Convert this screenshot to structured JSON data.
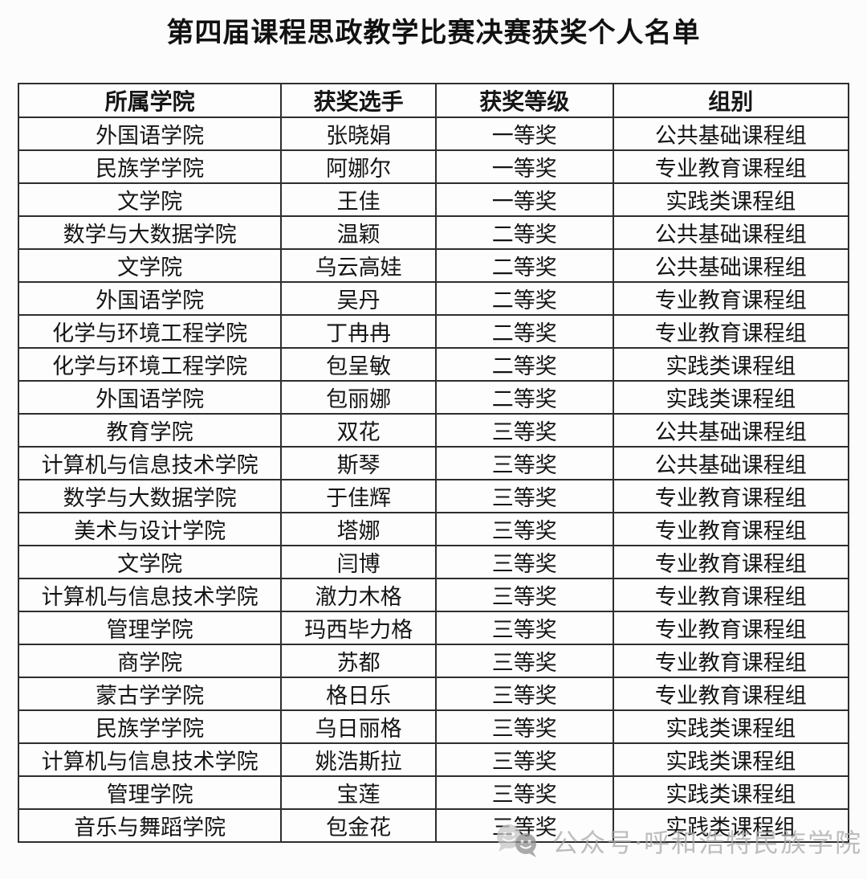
{
  "title": "第四届课程思政教学比赛决赛获奖个人名单",
  "table": {
    "headers": [
      "所属学院",
      "获奖选手",
      "获奖等级",
      "组别"
    ],
    "rows": [
      [
        "外国语学院",
        "张晓娟",
        "一等奖",
        "公共基础课程组"
      ],
      [
        "民族学学院",
        "阿娜尔",
        "一等奖",
        "专业教育课程组"
      ],
      [
        "文学院",
        "王佳",
        "一等奖",
        "实践类课程组"
      ],
      [
        "数学与大数据学院",
        "温颖",
        "二等奖",
        "公共基础课程组"
      ],
      [
        "文学院",
        "乌云高娃",
        "二等奖",
        "公共基础课程组"
      ],
      [
        "外国语学院",
        "吴丹",
        "二等奖",
        "专业教育课程组"
      ],
      [
        "化学与环境工程学院",
        "丁冉冉",
        "二等奖",
        "专业教育课程组"
      ],
      [
        "化学与环境工程学院",
        "包呈敏",
        "二等奖",
        "实践类课程组"
      ],
      [
        "外国语学院",
        "包丽娜",
        "二等奖",
        "实践类课程组"
      ],
      [
        "教育学院",
        "双花",
        "三等奖",
        "公共基础课程组"
      ],
      [
        "计算机与信息技术学院",
        "斯琴",
        "三等奖",
        "公共基础课程组"
      ],
      [
        "数学与大数据学院",
        "于佳辉",
        "三等奖",
        "专业教育课程组"
      ],
      [
        "美术与设计学院",
        "塔娜",
        "三等奖",
        "专业教育课程组"
      ],
      [
        "文学院",
        "闫博",
        "三等奖",
        "专业教育课程组"
      ],
      [
        "计算机与信息技术学院",
        "澈力木格",
        "三等奖",
        "专业教育课程组"
      ],
      [
        "管理学院",
        "玛西毕力格",
        "三等奖",
        "专业教育课程组"
      ],
      [
        "商学院",
        "苏都",
        "三等奖",
        "专业教育课程组"
      ],
      [
        "蒙古学学院",
        "格日乐",
        "三等奖",
        "专业教育课程组"
      ],
      [
        "民族学学院",
        "乌日丽格",
        "三等奖",
        "实践类课程组"
      ],
      [
        "计算机与信息技术学院",
        "姚浩斯拉",
        "三等奖",
        "实践类课程组"
      ],
      [
        "管理学院",
        "宝莲",
        "三等奖",
        "实践类课程组"
      ],
      [
        "音乐与舞蹈学院",
        "包金花",
        "三等奖",
        "实践类课程组"
      ]
    ]
  },
  "watermark": {
    "icon": "wechat-official-account-icon",
    "text": "公众号·呼和浩特民族学院",
    "color": "#a9a9a9"
  },
  "colors": {
    "background": "#fcfcfc",
    "text": "#151515",
    "table_border": "#2e2e2e",
    "watermark": "#a9a9a9"
  }
}
